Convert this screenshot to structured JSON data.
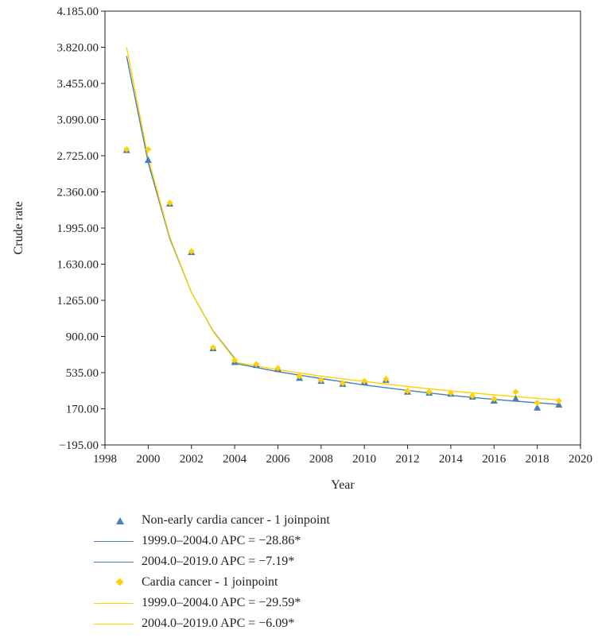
{
  "chart_data": {
    "type": "scatter",
    "xlabel": "Year",
    "ylabel": "Crude rate",
    "xlim": [
      1998,
      2020
    ],
    "ylim": [
      -195,
      4185
    ],
    "xticks": [
      1998,
      2000,
      2002,
      2004,
      2006,
      2008,
      2010,
      2012,
      2014,
      2016,
      2018,
      2020
    ],
    "yticks": [
      -195,
      170,
      535,
      900,
      1265,
      1630,
      1995,
      2360,
      2725,
      3090,
      3455,
      3820,
      4185
    ],
    "ytick_labels": [
      "−195.00",
      "170.00",
      "535.00",
      "900.00",
      "1.265.00",
      "1.630.00",
      "1.995.00",
      "2.360.00",
      "2.725.00",
      "3.090.00",
      "3.455.00",
      "3.820.00",
      "4.185.00"
    ],
    "grid": false,
    "legend_position": "bottom",
    "series": [
      {
        "name": "Non-early cardia cancer - 1 joinpoint",
        "kind": "points",
        "marker": "triangle",
        "color": "#4a7fb5",
        "x": [
          1999,
          2000,
          2001,
          2002,
          2003,
          2004,
          2005,
          2006,
          2007,
          2008,
          2009,
          2010,
          2011,
          2012,
          2013,
          2014,
          2015,
          2016,
          2017,
          2018,
          2019
        ],
        "y": [
          2780,
          2680,
          2240,
          1750,
          780,
          640,
          610,
          570,
          480,
          450,
          420,
          440,
          460,
          340,
          330,
          320,
          290,
          250,
          270,
          180,
          210
        ]
      },
      {
        "name": "1999.0–2004.0 APC = −28.86*",
        "kind": "line",
        "color": "#4a7fb5",
        "x": [
          1999,
          2000,
          2001,
          2002,
          2003,
          2004
        ],
        "y": [
          3730,
          2655,
          1890,
          1345,
          955,
          680
        ]
      },
      {
        "name": "2004.0–2019.0 APC = −7.19*",
        "kind": "line",
        "color": "#4a7fb5",
        "x": [
          2004,
          2006,
          2008,
          2010,
          2012,
          2014,
          2016,
          2018,
          2019
        ],
        "y": [
          630,
          545,
          475,
          410,
          355,
          305,
          265,
          230,
          215
        ]
      },
      {
        "name": "Cardia cancer - 1 joinpoint",
        "kind": "points",
        "marker": "diamond",
        "color": "#ffd200",
        "x": [
          1999,
          2000,
          2001,
          2002,
          2003,
          2004,
          2005,
          2006,
          2007,
          2008,
          2009,
          2010,
          2011,
          2012,
          2013,
          2014,
          2015,
          2016,
          2017,
          2018,
          2019
        ],
        "y": [
          2790,
          2790,
          2250,
          1760,
          790,
          660,
          620,
          580,
          500,
          460,
          430,
          450,
          470,
          350,
          340,
          330,
          300,
          270,
          340,
          230,
          250
        ]
      },
      {
        "name": "1999.0–2004.0 APC = −29.59*",
        "kind": "line",
        "color": "#ffd200",
        "x": [
          1999,
          2000,
          2001,
          2002,
          2003,
          2004
        ],
        "y": [
          3820,
          2700,
          1905,
          1345,
          950,
          670
        ]
      },
      {
        "name": "2004.0–2019.0 APC = −6.09*",
        "kind": "line",
        "color": "#ffd200",
        "x": [
          2004,
          2006,
          2008,
          2010,
          2012,
          2014,
          2016,
          2018,
          2019
        ],
        "y": [
          640,
          565,
          500,
          445,
          395,
          350,
          310,
          275,
          260
        ]
      }
    ]
  },
  "legend": {
    "items": [
      {
        "symbol": "triangle",
        "label": "Non-early cardia cancer - 1 joinpoint"
      },
      {
        "symbol": "line-blue",
        "label": "1999.0–2004.0 APC = −28.86*"
      },
      {
        "symbol": "line-blue",
        "label": "2004.0–2019.0 APC = −7.19*"
      },
      {
        "symbol": "diamond",
        "label": "Cardia cancer - 1 joinpoint"
      },
      {
        "symbol": "line-yellow",
        "label": "1999.0–2004.0 APC = −29.59*"
      },
      {
        "symbol": "line-yellow",
        "label": "2004.0–2019.0 APC = −6.09*"
      }
    ]
  }
}
